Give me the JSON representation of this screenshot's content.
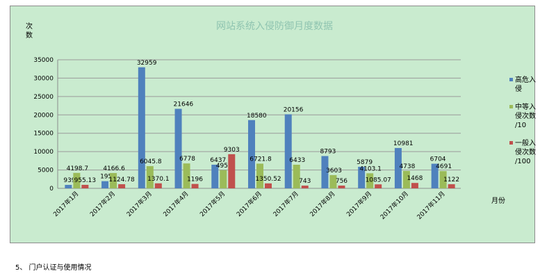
{
  "chart_data": {
    "type": "bar",
    "title": "网站系统入侵防御月度数据",
    "ylabel": "次\n数",
    "xlabel": "月份",
    "ylim": [
      0,
      35000
    ],
    "yticks": [
      "0",
      "5000",
      "10000",
      "15000",
      "20000",
      "25000",
      "30000",
      "35000"
    ],
    "grid": true,
    "legend_position": "right",
    "categories": [
      "2017年1月",
      "2017年2月",
      "2017年3月",
      "2017年4月",
      "2017年5月",
      "2017年6月",
      "2017年7月",
      "2017年8月",
      "2017年9月",
      "2017年10月",
      "2017年11月"
    ],
    "series": [
      {
        "name": "高危入\n侵",
        "color": "#4f81bd",
        "values": [
          939,
          1950,
          32959,
          21646,
          6437,
          18580,
          20156,
          8793,
          5879,
          10981,
          6704
        ],
        "labels": [
          "939",
          "1950",
          "32959",
          "21646",
          "6437",
          "18580",
          "20156",
          "8793",
          "5879",
          "10981",
          "6704"
        ]
      },
      {
        "name": "中等入\n侵次数\n/10",
        "color": "#9bbb59",
        "values": [
          4198.7,
          4166.6,
          6045.8,
          6778,
          4953,
          6721.8,
          6433,
          3603,
          4103.1,
          4738,
          4691
        ],
        "labels": [
          "4198.7",
          "4166.6",
          "6045.8",
          "6778",
          "4953",
          "6721.8",
          "6433",
          "3603",
          "4103.1",
          "4738",
          "4691"
        ]
      },
      {
        "name": "一般入\n侵次数\n/100",
        "color": "#c0504d",
        "values": [
          955.13,
          1124.78,
          1370.1,
          1196,
          9303,
          1350.52,
          743,
          756,
          1085.07,
          1468,
          1122
        ],
        "labels": [
          "955.13",
          "1124.78",
          "1370.1",
          "1196",
          "9303",
          "1350.52",
          "743",
          "756",
          "1085.07",
          "1468",
          "1122"
        ]
      }
    ]
  },
  "footer": {
    "text": "5、 门户认证与使用情况"
  }
}
